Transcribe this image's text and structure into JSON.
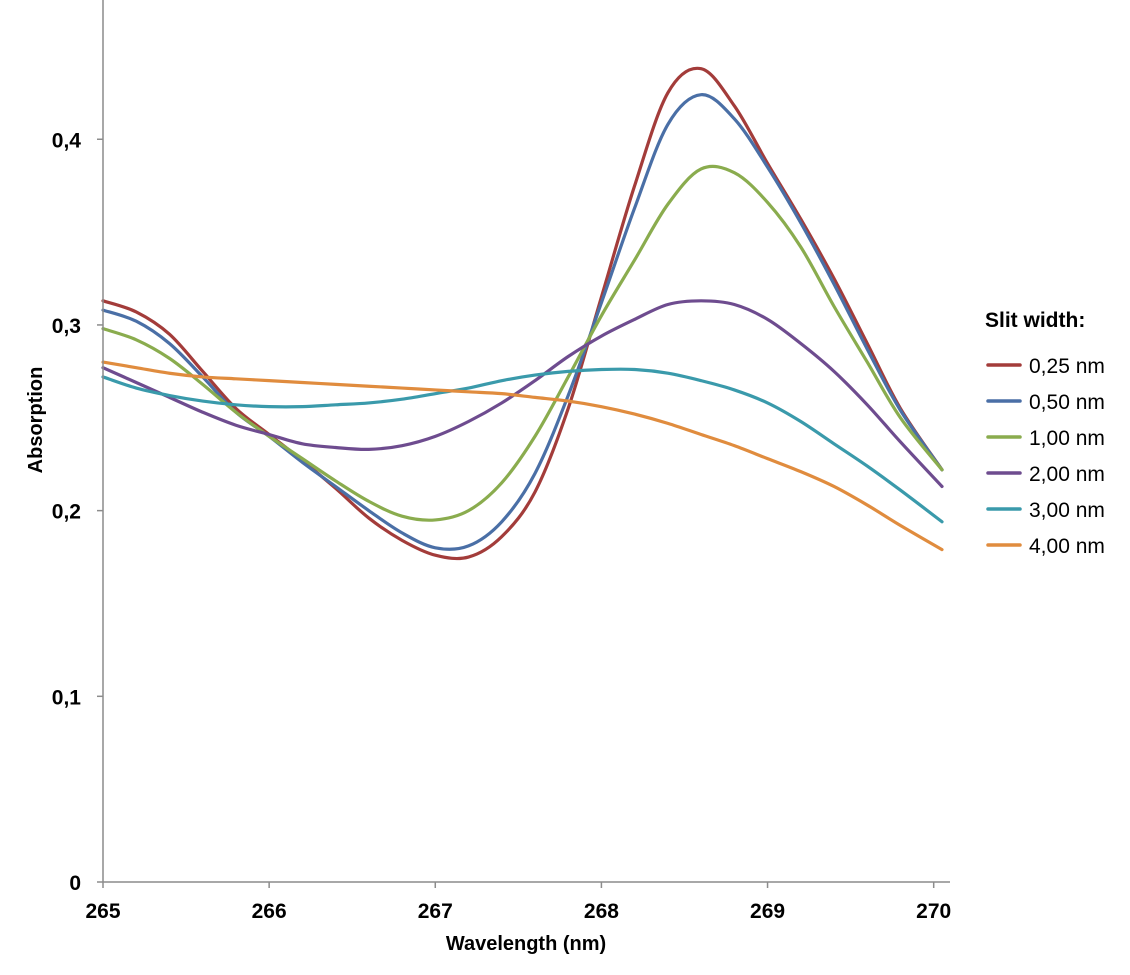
{
  "chart_data": {
    "type": "line",
    "title": "",
    "xlabel": "Wavelength (nm)",
    "ylabel": "Absorption",
    "xlim": [
      265,
      270.05
    ],
    "ylim": [
      0,
      0.475
    ],
    "x_ticks": [
      265,
      266,
      267,
      268,
      269,
      270
    ],
    "x_tick_labels": [
      "265",
      "266",
      "267",
      "268",
      "269",
      "270"
    ],
    "y_ticks": [
      0,
      0.1,
      0.2,
      0.3,
      0.4
    ],
    "y_tick_labels": [
      "0",
      "0,1",
      "0,2",
      "0,3",
      "0,4"
    ],
    "grid": false,
    "legend": {
      "title": "Slit width:",
      "position": "right"
    },
    "series": [
      {
        "name": "0,25 nm",
        "color": "#a33c3a",
        "points": [
          [
            265,
            0.313
          ],
          [
            265.2,
            0.307
          ],
          [
            265.4,
            0.295
          ],
          [
            265.6,
            0.275
          ],
          [
            265.8,
            0.255
          ],
          [
            266,
            0.241
          ],
          [
            266.2,
            0.227
          ],
          [
            266.4,
            0.212
          ],
          [
            266.6,
            0.196
          ],
          [
            266.8,
            0.184
          ],
          [
            267,
            0.176
          ],
          [
            267.2,
            0.175
          ],
          [
            267.4,
            0.186
          ],
          [
            267.6,
            0.21
          ],
          [
            267.8,
            0.255
          ],
          [
            268,
            0.315
          ],
          [
            268.2,
            0.375
          ],
          [
            268.4,
            0.425
          ],
          [
            268.6,
            0.438
          ],
          [
            268.8,
            0.418
          ],
          [
            269,
            0.387
          ],
          [
            269.2,
            0.357
          ],
          [
            269.4,
            0.325
          ],
          [
            269.6,
            0.29
          ],
          [
            269.8,
            0.255
          ],
          [
            270.05,
            0.222
          ]
        ]
      },
      {
        "name": "0,50 nm",
        "color": "#4a6fa6",
        "points": [
          [
            265,
            0.308
          ],
          [
            265.2,
            0.302
          ],
          [
            265.4,
            0.29
          ],
          [
            265.6,
            0.272
          ],
          [
            265.8,
            0.253
          ],
          [
            266,
            0.24
          ],
          [
            266.2,
            0.226
          ],
          [
            266.4,
            0.213
          ],
          [
            266.6,
            0.2
          ],
          [
            266.8,
            0.188
          ],
          [
            267,
            0.18
          ],
          [
            267.2,
            0.181
          ],
          [
            267.4,
            0.194
          ],
          [
            267.6,
            0.22
          ],
          [
            267.8,
            0.262
          ],
          [
            268,
            0.312
          ],
          [
            268.2,
            0.363
          ],
          [
            268.4,
            0.408
          ],
          [
            268.6,
            0.424
          ],
          [
            268.8,
            0.411
          ],
          [
            269,
            0.385
          ],
          [
            269.2,
            0.355
          ],
          [
            269.4,
            0.322
          ],
          [
            269.6,
            0.287
          ],
          [
            269.8,
            0.254
          ],
          [
            270.05,
            0.222
          ]
        ]
      },
      {
        "name": "1,00 nm",
        "color": "#8aac4e",
        "points": [
          [
            265,
            0.298
          ],
          [
            265.2,
            0.292
          ],
          [
            265.4,
            0.282
          ],
          [
            265.6,
            0.268
          ],
          [
            265.8,
            0.253
          ],
          [
            266,
            0.24
          ],
          [
            266.2,
            0.228
          ],
          [
            266.4,
            0.216
          ],
          [
            266.6,
            0.205
          ],
          [
            266.8,
            0.197
          ],
          [
            267,
            0.195
          ],
          [
            267.2,
            0.2
          ],
          [
            267.4,
            0.215
          ],
          [
            267.6,
            0.24
          ],
          [
            267.8,
            0.272
          ],
          [
            268,
            0.305
          ],
          [
            268.2,
            0.335
          ],
          [
            268.4,
            0.365
          ],
          [
            268.6,
            0.384
          ],
          [
            268.8,
            0.382
          ],
          [
            269,
            0.366
          ],
          [
            269.2,
            0.342
          ],
          [
            269.4,
            0.31
          ],
          [
            269.6,
            0.28
          ],
          [
            269.8,
            0.25
          ],
          [
            270.05,
            0.222
          ]
        ]
      },
      {
        "name": "2,00 nm",
        "color": "#6e4c8f",
        "points": [
          [
            265,
            0.277
          ],
          [
            265.2,
            0.269
          ],
          [
            265.4,
            0.261
          ],
          [
            265.6,
            0.253
          ],
          [
            265.8,
            0.246
          ],
          [
            266,
            0.241
          ],
          [
            266.2,
            0.236
          ],
          [
            266.4,
            0.234
          ],
          [
            266.6,
            0.233
          ],
          [
            266.8,
            0.235
          ],
          [
            267,
            0.24
          ],
          [
            267.2,
            0.248
          ],
          [
            267.4,
            0.258
          ],
          [
            267.6,
            0.27
          ],
          [
            267.8,
            0.283
          ],
          [
            268,
            0.294
          ],
          [
            268.2,
            0.303
          ],
          [
            268.4,
            0.311
          ],
          [
            268.6,
            0.313
          ],
          [
            268.8,
            0.311
          ],
          [
            269,
            0.303
          ],
          [
            269.2,
            0.29
          ],
          [
            269.4,
            0.275
          ],
          [
            269.6,
            0.257
          ],
          [
            269.8,
            0.237
          ],
          [
            270.05,
            0.213
          ]
        ]
      },
      {
        "name": "3,00 nm",
        "color": "#3a9aab",
        "points": [
          [
            265,
            0.272
          ],
          [
            265.2,
            0.266
          ],
          [
            265.4,
            0.262
          ],
          [
            265.6,
            0.259
          ],
          [
            265.8,
            0.257
          ],
          [
            266,
            0.256
          ],
          [
            266.2,
            0.256
          ],
          [
            266.4,
            0.257
          ],
          [
            266.6,
            0.258
          ],
          [
            266.8,
            0.26
          ],
          [
            267,
            0.263
          ],
          [
            267.2,
            0.266
          ],
          [
            267.4,
            0.27
          ],
          [
            267.6,
            0.273
          ],
          [
            267.8,
            0.275
          ],
          [
            268,
            0.276
          ],
          [
            268.2,
            0.276
          ],
          [
            268.4,
            0.274
          ],
          [
            268.6,
            0.27
          ],
          [
            268.8,
            0.265
          ],
          [
            269,
            0.258
          ],
          [
            269.2,
            0.248
          ],
          [
            269.4,
            0.236
          ],
          [
            269.6,
            0.224
          ],
          [
            269.8,
            0.211
          ],
          [
            270.05,
            0.194
          ]
        ]
      },
      {
        "name": "4,00 nm",
        "color": "#e08c3e",
        "points": [
          [
            265,
            0.28
          ],
          [
            265.2,
            0.277
          ],
          [
            265.4,
            0.274
          ],
          [
            265.6,
            0.272
          ],
          [
            265.8,
            0.271
          ],
          [
            266,
            0.27
          ],
          [
            266.2,
            0.269
          ],
          [
            266.4,
            0.268
          ],
          [
            266.6,
            0.267
          ],
          [
            266.8,
            0.266
          ],
          [
            267,
            0.265
          ],
          [
            267.2,
            0.264
          ],
          [
            267.4,
            0.263
          ],
          [
            267.6,
            0.261
          ],
          [
            267.8,
            0.259
          ],
          [
            268,
            0.256
          ],
          [
            268.2,
            0.252
          ],
          [
            268.4,
            0.247
          ],
          [
            268.6,
            0.241
          ],
          [
            268.8,
            0.235
          ],
          [
            269,
            0.228
          ],
          [
            269.2,
            0.221
          ],
          [
            269.4,
            0.213
          ],
          [
            269.6,
            0.203
          ],
          [
            269.8,
            0.192
          ],
          [
            270.05,
            0.179
          ]
        ]
      }
    ]
  }
}
